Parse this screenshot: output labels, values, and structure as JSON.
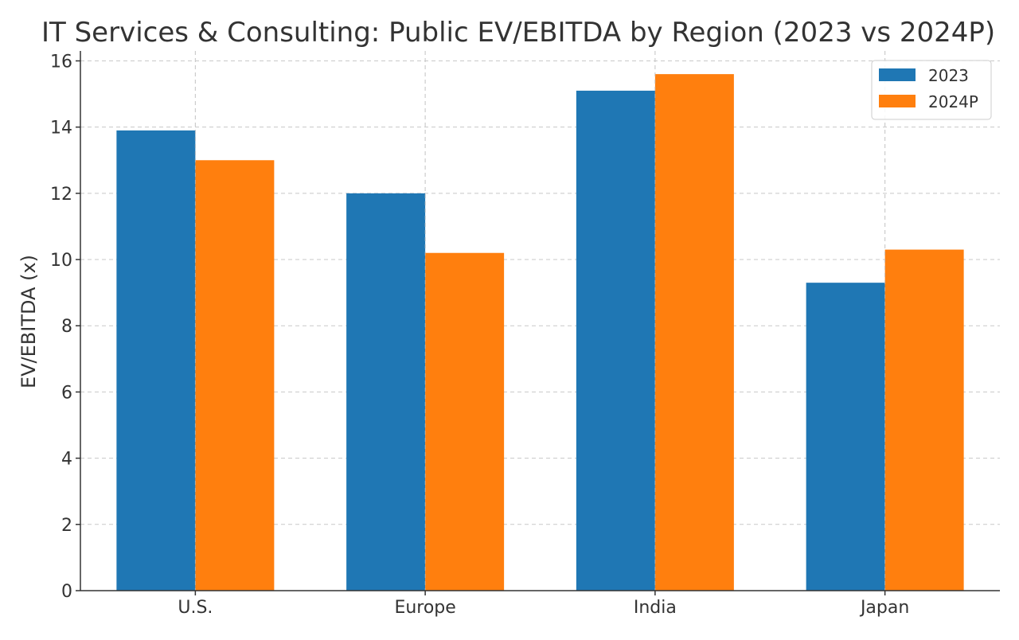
{
  "chart_data": {
    "type": "bar",
    "title": "IT Services & Consulting: Public EV/EBITDA by Region (2023 vs 2024P)",
    "xlabel": "",
    "ylabel": "EV/EBITDA (x)",
    "categories": [
      "U.S.",
      "Europe",
      "India",
      "Japan"
    ],
    "series": [
      {
        "name": "2023",
        "color": "#1f77b4",
        "values": [
          13.9,
          12.0,
          15.1,
          9.3
        ]
      },
      {
        "name": "2024P",
        "color": "#ff7f0e",
        "values": [
          13.0,
          10.2,
          15.6,
          10.3
        ]
      }
    ],
    "ylim": [
      0,
      16.3
    ],
    "yticks": [
      0,
      2,
      4,
      6,
      8,
      10,
      12,
      14,
      16
    ],
    "grid": true,
    "legend_position": "top-right"
  }
}
